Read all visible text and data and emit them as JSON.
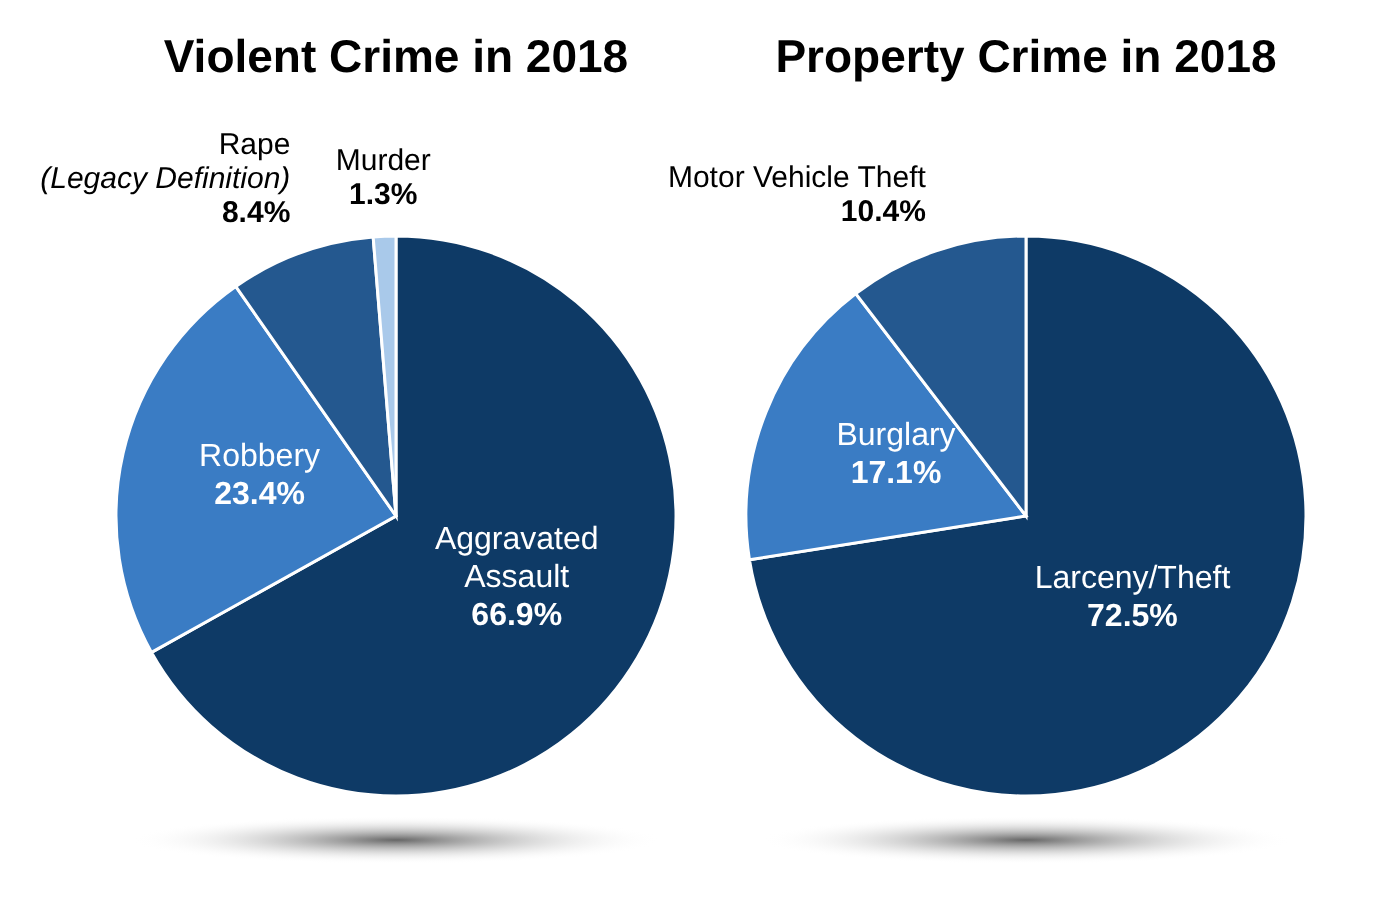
{
  "chart_data": [
    {
      "type": "pie",
      "title": "Violent Crime in 2018",
      "categories": [
        "Aggravated\nAssault",
        "Robbery",
        "Rape\n(Legacy Definition)",
        "Murder"
      ],
      "values": [
        66.9,
        23.4,
        8.4,
        1.3
      ],
      "colors": [
        "#0e3a66",
        "#3a7cc4",
        "#24588f",
        "#a9c9ea"
      ],
      "value_labels": [
        "66.9%",
        "23.4%",
        "8.4%",
        "1.3%"
      ]
    },
    {
      "type": "pie",
      "title": "Property Crime in 2018",
      "categories": [
        "Larceny/Theft",
        "Burglary",
        "Motor Vehicle Theft"
      ],
      "values": [
        72.5,
        17.1,
        10.4
      ],
      "colors": [
        "#0e3a66",
        "#3a7cc4",
        "#24588f"
      ],
      "value_labels": [
        "72.5%",
        "17.1%",
        "10.4%"
      ]
    }
  ]
}
